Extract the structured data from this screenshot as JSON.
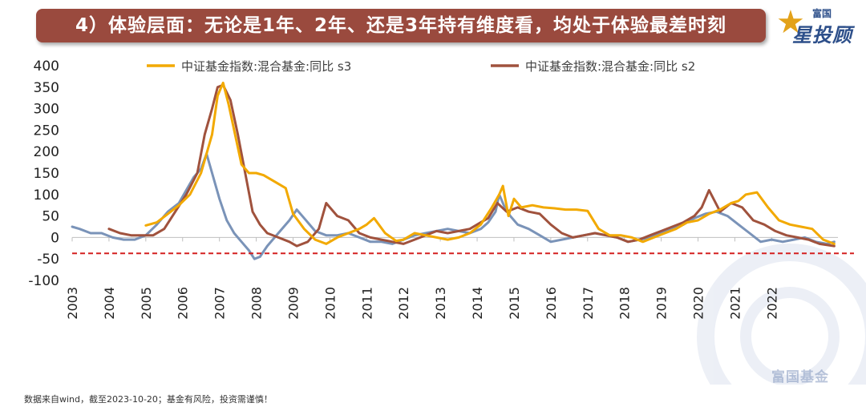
{
  "title": "4）体验层面：无论是1年、2年、还是3年持有维度看，均处于体验最差时刻",
  "logo": {
    "top_text": "富国",
    "main_text": "星投顾"
  },
  "footer": "数据来自wind，截至2023-10-20；基金有风险，投资需谨慎！",
  "watermark": "富国基金",
  "colors": {
    "title_bg": "#9a4a3e",
    "s3": "#f2a900",
    "s2": "#a0523d",
    "s1": "#7a93b8",
    "ref_line": "#d42020"
  },
  "chart_data": {
    "type": "line",
    "legend": [
      {
        "name": "中证基金指数:混合基金:同比 s3",
        "color": "#f2a900"
      },
      {
        "name": "中证基金指数:混合基金:同比 s2",
        "color": "#a0523d"
      }
    ],
    "legend_position": "top",
    "xlabel": "",
    "ylabel": "",
    "ylim": [
      -100,
      400
    ],
    "yticks": [
      "400",
      "350",
      "300",
      "250",
      "200",
      "150",
      "100",
      "50",
      "0",
      "-50",
      "-100"
    ],
    "xticks": [
      "2003",
      "2004",
      "2005",
      "2006",
      "2007",
      "2008",
      "2009",
      "2010",
      "2011",
      "2012",
      "2013",
      "2014",
      "2015",
      "2016",
      "2017",
      "2018",
      "2019",
      "2020",
      "2021",
      "2022"
    ],
    "xlim": [
      2003.0,
      2023.8
    ],
    "reference_line": {
      "y": -37,
      "style": "dashed",
      "color": "#d42020"
    },
    "series": [
      {
        "name": "中证基金指数:混合基金:同比 s3",
        "color": "#f2a900",
        "x": [
          2005.0,
          2005.3,
          2005.6,
          2005.9,
          2006.2,
          2006.5,
          2006.8,
          2006.95,
          2007.1,
          2007.25,
          2007.4,
          2007.6,
          2007.8,
          2008.0,
          2008.2,
          2008.5,
          2008.8,
          2009.0,
          2009.3,
          2009.6,
          2009.9,
          2010.2,
          2010.5,
          2010.8,
          2011.0,
          2011.2,
          2011.5,
          2011.8,
          2012.0,
          2012.3,
          2012.6,
          2012.9,
          2013.2,
          2013.5,
          2013.8,
          2014.1,
          2014.4,
          2014.6,
          2014.7,
          2014.85,
          2015.0,
          2015.2,
          2015.5,
          2015.8,
          2016.1,
          2016.4,
          2016.7,
          2017.0,
          2017.3,
          2017.6,
          2017.9,
          2018.2,
          2018.5,
          2018.8,
          2019.1,
          2019.4,
          2019.7,
          2020.0,
          2020.3,
          2020.6,
          2020.9,
          2021.1,
          2021.3,
          2021.6,
          2021.9,
          2022.2,
          2022.5,
          2022.8,
          2023.1,
          2023.4,
          2023.7
        ],
        "y": [
          28,
          35,
          55,
          75,
          100,
          150,
          240,
          330,
          360,
          310,
          250,
          170,
          150,
          150,
          145,
          130,
          115,
          55,
          20,
          -5,
          -15,
          0,
          10,
          20,
          30,
          45,
          10,
          -8,
          -5,
          10,
          5,
          0,
          -5,
          0,
          10,
          30,
          70,
          100,
          120,
          50,
          90,
          70,
          75,
          70,
          68,
          65,
          65,
          62,
          20,
          5,
          5,
          0,
          -10,
          0,
          10,
          20,
          35,
          40,
          55,
          65,
          80,
          85,
          100,
          105,
          70,
          40,
          30,
          25,
          20,
          -5,
          -15
        ]
      },
      {
        "name": "中证基金指数:混合基金:同比 s2",
        "color": "#a0523d",
        "x": [
          2004.0,
          2004.3,
          2004.6,
          2004.9,
          2005.2,
          2005.5,
          2005.8,
          2006.1,
          2006.4,
          2006.6,
          2006.8,
          2006.95,
          2007.1,
          2007.3,
          2007.5,
          2007.7,
          2007.9,
          2008.1,
          2008.3,
          2008.6,
          2008.9,
          2009.1,
          2009.4,
          2009.7,
          2009.9,
          2010.2,
          2010.5,
          2010.8,
          2011.1,
          2011.4,
          2011.7,
          2012.0,
          2012.3,
          2012.6,
          2012.9,
          2013.2,
          2013.5,
          2013.8,
          2014.1,
          2014.3,
          2014.55,
          2014.8,
          2015.1,
          2015.4,
          2015.7,
          2016.0,
          2016.3,
          2016.6,
          2016.9,
          2017.2,
          2017.5,
          2017.8,
          2018.1,
          2018.4,
          2018.7,
          2019.0,
          2019.3,
          2019.6,
          2019.9,
          2020.1,
          2020.3,
          2020.6,
          2020.9,
          2021.2,
          2021.5,
          2021.8,
          2022.1,
          2022.4,
          2022.7,
          2023.0,
          2023.3,
          2023.7
        ],
        "y": [
          20,
          10,
          5,
          5,
          5,
          20,
          60,
          100,
          150,
          240,
          300,
          350,
          355,
          320,
          240,
          150,
          60,
          30,
          10,
          0,
          -10,
          -20,
          -10,
          20,
          80,
          50,
          40,
          10,
          0,
          -5,
          -10,
          -15,
          -5,
          5,
          15,
          10,
          15,
          20,
          35,
          45,
          80,
          60,
          70,
          60,
          55,
          30,
          10,
          0,
          5,
          10,
          5,
          0,
          -10,
          -5,
          5,
          15,
          25,
          35,
          50,
          70,
          110,
          60,
          80,
          70,
          40,
          30,
          15,
          5,
          0,
          -5,
          -15,
          -20
        ]
      },
      {
        "name": "",
        "color": "#7a93b8",
        "x": [
          2003.0,
          2003.2,
          2003.5,
          2003.8,
          2004.1,
          2004.4,
          2004.7,
          2005.0,
          2005.3,
          2005.6,
          2005.9,
          2006.1,
          2006.3,
          2006.5,
          2006.65,
          2006.8,
          2007.0,
          2007.2,
          2007.4,
          2007.6,
          2007.8,
          2007.95,
          2008.1,
          2008.3,
          2008.6,
          2008.9,
          2009.1,
          2009.3,
          2009.6,
          2009.9,
          2010.2,
          2010.5,
          2010.8,
          2011.1,
          2011.4,
          2011.7,
          2012.0,
          2012.3,
          2012.6,
          2012.9,
          2013.2,
          2013.5,
          2013.8,
          2014.1,
          2014.3,
          2014.5,
          2014.6,
          2014.75,
          2014.9,
          2015.1,
          2015.4,
          2015.7,
          2016.0,
          2016.3,
          2016.6,
          2016.9,
          2017.2,
          2017.5,
          2017.8,
          2018.1,
          2018.4,
          2018.7,
          2019.0,
          2019.3,
          2019.6,
          2019.9,
          2020.2,
          2020.5,
          2020.8,
          2021.1,
          2021.4,
          2021.7,
          2022.0,
          2022.3,
          2022.6,
          2022.9,
          2023.2,
          2023.5,
          2023.7
        ],
        "y": [
          25,
          20,
          10,
          10,
          0,
          -5,
          -5,
          5,
          30,
          60,
          80,
          110,
          140,
          160,
          195,
          150,
          90,
          40,
          10,
          -10,
          -30,
          -50,
          -45,
          -20,
          10,
          40,
          65,
          45,
          15,
          5,
          5,
          10,
          0,
          -10,
          -10,
          -15,
          -5,
          5,
          10,
          15,
          20,
          15,
          10,
          20,
          35,
          60,
          100,
          70,
          50,
          30,
          20,
          5,
          -10,
          -5,
          0,
          5,
          10,
          5,
          0,
          -10,
          -5,
          0,
          10,
          20,
          30,
          45,
          55,
          60,
          50,
          30,
          10,
          -10,
          -5,
          -10,
          -5,
          0,
          -10,
          -15,
          -10
        ]
      }
    ]
  }
}
